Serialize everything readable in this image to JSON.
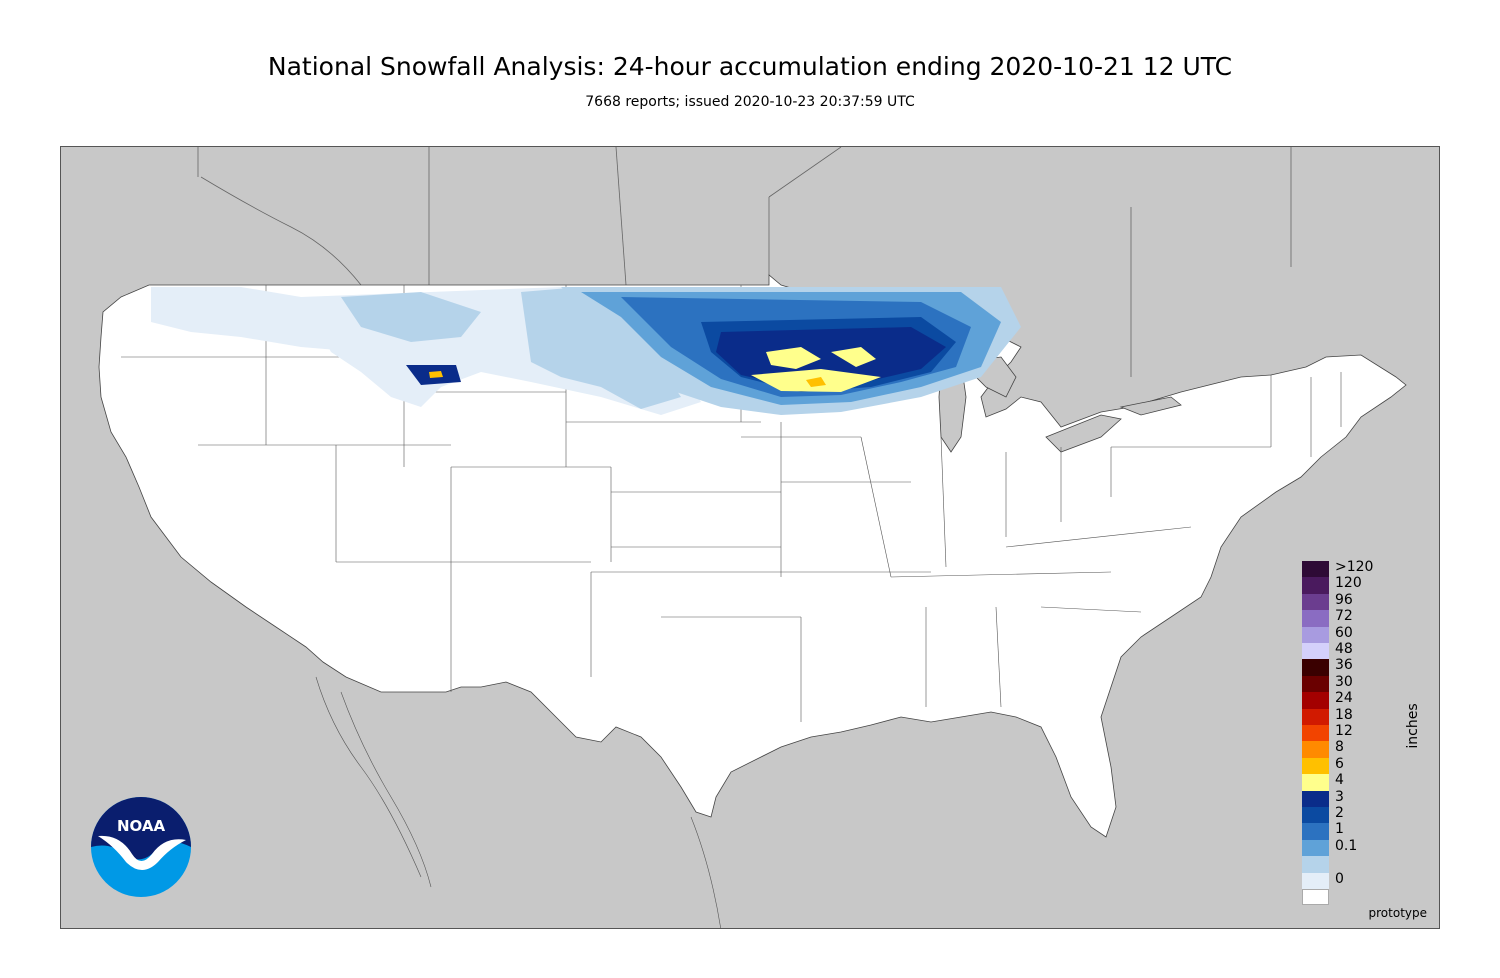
{
  "header": {
    "title": "National Snowfall Analysis: 24-hour accumulation ending 2020-10-21 12 UTC",
    "subtitle": "7668 reports; issued 2020-10-23 20:37:59 UTC"
  },
  "map": {
    "region": "Contiguous United States",
    "footer_note": "prototype",
    "colors": {
      "land": "#ffffff",
      "outside": "#c8c8c8",
      "water": "#c8c8c8"
    }
  },
  "legend": {
    "units": "inches",
    "entries": [
      {
        "label": ">120",
        "color": "#2e0a36"
      },
      {
        "label": "120",
        "color": "#4a1a5e"
      },
      {
        "label": "96",
        "color": "#6b3d8f"
      },
      {
        "label": "72",
        "color": "#8a6cc2"
      },
      {
        "label": "60",
        "color": "#a89be0"
      },
      {
        "label": "48",
        "color": "#d4d0fb"
      },
      {
        "label": "36",
        "color": "#3a0000"
      },
      {
        "label": "30",
        "color": "#6a0000"
      },
      {
        "label": "24",
        "color": "#a30000"
      },
      {
        "label": "18",
        "color": "#d11a00"
      },
      {
        "label": "12",
        "color": "#f24400"
      },
      {
        "label": "8",
        "color": "#ff8a00"
      },
      {
        "label": "6",
        "color": "#ffc000"
      },
      {
        "label": "4",
        "color": "#ffff8c"
      },
      {
        "label": "3",
        "color": "#0a2c8a"
      },
      {
        "label": "2",
        "color": "#0b4aa1"
      },
      {
        "label": "1",
        "color": "#2c72c0"
      },
      {
        "label": "0.1",
        "color": "#5fa2d8"
      },
      {
        "label": "",
        "color": "#b5d3ea"
      },
      {
        "label": "0",
        "color": "#e4eef8"
      },
      {
        "label": "",
        "color": "#ffffff"
      }
    ]
  },
  "logo": {
    "text": "NOAA",
    "icon": "noaa-logo-icon"
  }
}
